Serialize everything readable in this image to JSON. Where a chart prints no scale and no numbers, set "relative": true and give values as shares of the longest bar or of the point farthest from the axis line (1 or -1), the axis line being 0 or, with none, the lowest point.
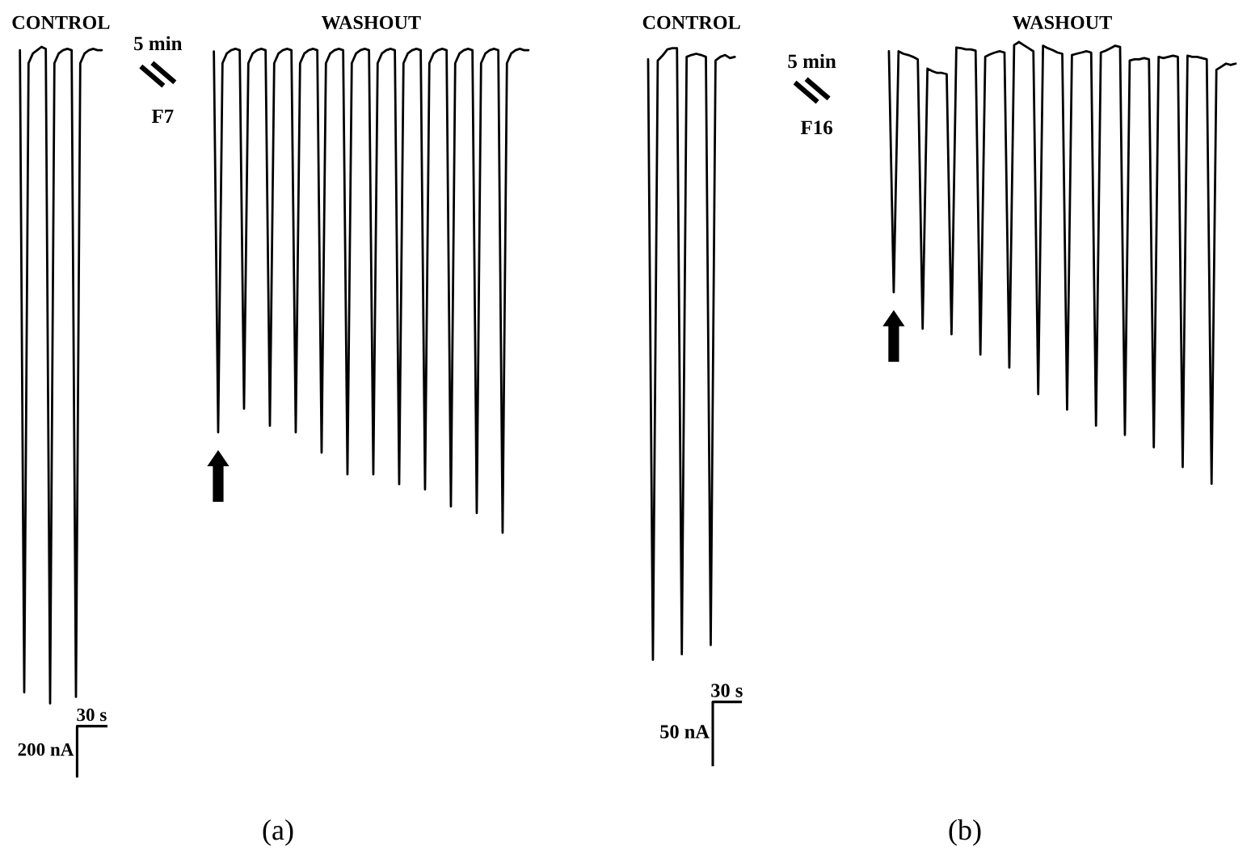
{
  "chart_data": [
    {
      "type": "line",
      "relative": true,
      "tick_labels": false,
      "xlabel": "(a)",
      "annotations": [
        "5 min",
        "F7",
        "30 s",
        "200 nA"
      ],
      "categories": [
        null,
        null,
        null,
        null,
        null,
        null,
        null,
        null,
        null,
        null,
        null,
        null,
        null,
        null,
        null,
        null,
        null,
        null,
        null,
        null,
        null,
        null,
        null,
        null,
        null,
        null,
        null,
        null,
        null,
        null,
        null,
        null,
        null,
        null,
        null,
        null,
        null,
        null,
        null,
        null,
        null,
        null,
        null,
        null,
        null,
        null,
        null,
        null,
        null,
        null,
        null,
        null,
        null,
        null,
        null,
        null,
        null,
        null,
        null,
        null,
        null,
        null,
        null,
        null,
        null,
        null,
        null,
        null,
        null,
        null,
        null,
        null,
        null,
        null,
        null,
        null,
        null,
        null,
        null,
        null,
        null,
        null,
        null,
        null,
        null,
        null,
        null,
        null,
        null,
        null,
        null,
        null,
        null,
        null,
        null,
        null,
        null,
        null,
        null,
        null,
        null,
        null,
        null,
        null,
        null,
        null,
        null,
        null,
        null,
        null,
        null,
        null,
        null,
        null,
        null,
        null,
        null,
        null,
        null
      ],
      "series": [
        {
          "name": "CONTROL",
          "color": "#000000",
          "values": [
            0.995,
            0.017,
            0.975,
            0.99,
            0.995,
            1,
            0.997,
            0,
            0.975,
            0.99,
            0.995,
            0.997,
            0.995,
            0.01,
            0.975,
            0.99,
            0.995,
            0.997,
            0.995,
            0.995,
            null,
            null,
            null,
            null,
            null,
            null,
            null,
            null,
            null,
            null,
            null,
            null,
            null,
            null,
            null,
            null,
            null,
            null,
            null,
            null,
            null,
            null,
            null,
            null,
            null,
            null,
            null,
            null,
            null,
            null,
            null,
            null,
            null,
            null,
            null,
            null,
            null,
            null,
            null,
            null,
            null,
            null,
            null,
            null,
            null,
            null,
            null,
            null,
            null,
            null,
            null,
            null,
            null,
            null,
            null,
            null,
            null,
            null,
            null,
            null,
            null,
            null,
            null,
            null,
            null,
            null,
            null,
            null,
            null,
            null,
            null,
            null,
            null,
            null,
            null,
            null,
            null,
            null,
            null,
            null,
            null,
            null,
            null,
            null,
            null,
            null,
            null,
            null,
            null,
            null,
            null,
            null,
            null,
            null,
            null,
            null,
            null,
            null,
            null
          ]
        },
        {
          "name": "WASHOUT",
          "color": "#000000",
          "values": [
            null,
            null,
            null,
            null,
            null,
            null,
            null,
            null,
            null,
            null,
            null,
            null,
            null,
            null,
            null,
            null,
            null,
            null,
            null,
            null,
            null,
            null,
            null,
            null,
            null,
            null,
            null,
            null,
            null,
            null,
            null,
            null,
            null,
            null,
            null,
            null,
            null,
            null,
            null,
            null,
            null,
            null,
            null,
            null,
            null,
            0.993,
            0.413,
            0.975,
            0.99,
            0.995,
            0.997,
            0.995,
            0.449,
            0.975,
            0.99,
            0.995,
            0.997,
            0.995,
            0.423,
            0.975,
            0.99,
            0.995,
            0.997,
            0.995,
            0.413,
            0.975,
            0.99,
            0.995,
            0.997,
            0.995,
            0.382,
            0.975,
            0.99,
            0.995,
            0.997,
            0.995,
            0.349,
            0.975,
            0.99,
            0.995,
            0.997,
            0.995,
            0.349,
            0.975,
            0.99,
            0.995,
            0.997,
            0.995,
            0.334,
            0.975,
            0.99,
            0.995,
            0.997,
            0.995,
            0.326,
            0.975,
            0.99,
            0.995,
            0.997,
            0.995,
            0.3,
            0.975,
            0.99,
            0.995,
            0.997,
            0.995,
            0.29,
            0.975,
            0.99,
            0.995,
            0.997,
            0.995,
            0.26,
            0.975,
            0.99,
            0.995,
            0.997,
            0.995,
            0.995
          ]
        }
      ]
    },
    {
      "type": "line",
      "relative": true,
      "tick_labels": false,
      "xlabel": "(b)",
      "annotations": [
        "5 min",
        "F16",
        "30 s",
        "50 nA"
      ],
      "categories": [
        null,
        null,
        null,
        null,
        null,
        null,
        null,
        null,
        null,
        null,
        null,
        null,
        null,
        null,
        null,
        null,
        null,
        null,
        null,
        null,
        null,
        null,
        null,
        null,
        null,
        null,
        null,
        null,
        null,
        null,
        null,
        null,
        null,
        null,
        null,
        null,
        null,
        null,
        null,
        null,
        null,
        null,
        null,
        null,
        null,
        null,
        null,
        null,
        null,
        null,
        null,
        null,
        null,
        null,
        null,
        null,
        null,
        null,
        null,
        null,
        null,
        null,
        null,
        null,
        null,
        null,
        null,
        null,
        null,
        null,
        null,
        null,
        null,
        null,
        null,
        null,
        null,
        null,
        null,
        null,
        null,
        null,
        null,
        null,
        null,
        null,
        null,
        null,
        null,
        null,
        null,
        null,
        null,
        null,
        null,
        null,
        null,
        null,
        null,
        null,
        null,
        null,
        null,
        null,
        null,
        null,
        null,
        null,
        null,
        null,
        null,
        null,
        null,
        null,
        null,
        null,
        null,
        null,
        null,
        null,
        null,
        null,
        null
      ],
      "series": [
        {
          "name": "CONTROL",
          "color": "#000000",
          "values": [
            0.972,
            0,
            0.97,
            0.978,
            0.988,
            0.99,
            0.99,
            0.009,
            0.976,
            0.979,
            0.981,
            0.979,
            0.976,
            0.024,
            0.97,
            0.976,
            0.979,
            0.974,
            0.976,
            null,
            null,
            null,
            null,
            null,
            null,
            null,
            null,
            null,
            null,
            null,
            null,
            null,
            null,
            null,
            null,
            null,
            null,
            null,
            null,
            null,
            null,
            null,
            null,
            null,
            null,
            null,
            null,
            null,
            null,
            null,
            null,
            null,
            null,
            null,
            null,
            null,
            null,
            null,
            null,
            null,
            null,
            null,
            null,
            null,
            null,
            null,
            null,
            null,
            null,
            null,
            null,
            null,
            null,
            null,
            null,
            null,
            null,
            null,
            null,
            null,
            null,
            null,
            null,
            null,
            null,
            null,
            null,
            null,
            null,
            null,
            null,
            null,
            null,
            null,
            null,
            null,
            null,
            null,
            null,
            null,
            null,
            null,
            null,
            null,
            null,
            null,
            null,
            null,
            null,
            null,
            null,
            null,
            null,
            null,
            null,
            null,
            null,
            null,
            null,
            null,
            null,
            null,
            null
          ]
        },
        {
          "name": "WASHOUT",
          "color": "#000000",
          "values": [
            null,
            null,
            null,
            null,
            null,
            null,
            null,
            null,
            null,
            null,
            null,
            null,
            null,
            null,
            null,
            null,
            null,
            null,
            null,
            null,
            null,
            null,
            null,
            null,
            null,
            null,
            null,
            null,
            null,
            null,
            null,
            null,
            null,
            null,
            null,
            null,
            null,
            null,
            null,
            null,
            null,
            null,
            null,
            null,
            null,
            null,
            null,
            null,
            null,
            null,
            0.985,
            0.595,
            0.985,
            0.981,
            0.979,
            0.976,
            0.972,
            0.536,
            0.957,
            0.953,
            0.95,
            0.95,
            0.948,
            0.527,
            0.991,
            0.99,
            0.988,
            0.988,
            0.986,
            0.494,
            0.976,
            0.98,
            0.983,
            0.985,
            0.983,
            0.473,
            0.995,
            1,
            0.995,
            0.99,
            0.985,
            0.43,
            0.994,
            0.99,
            0.987,
            0.983,
            0.981,
            0.405,
            0.979,
            0.981,
            0.983,
            0.985,
            0.983,
            0.379,
            0.983,
            0.986,
            0.99,
            0.994,
            0.992,
            0.364,
            0.97,
            0.972,
            0.972,
            0.974,
            0.972,
            0.344,
            0.976,
            0.974,
            0.976,
            0.978,
            0.976,
            0.312,
            0.978,
            0.976,
            0.976,
            0.974,
            0.972,
            0.285,
            0.955,
            0.96,
            0.965,
            0.963,
            0.965
          ]
        }
      ]
    }
  ]
}
